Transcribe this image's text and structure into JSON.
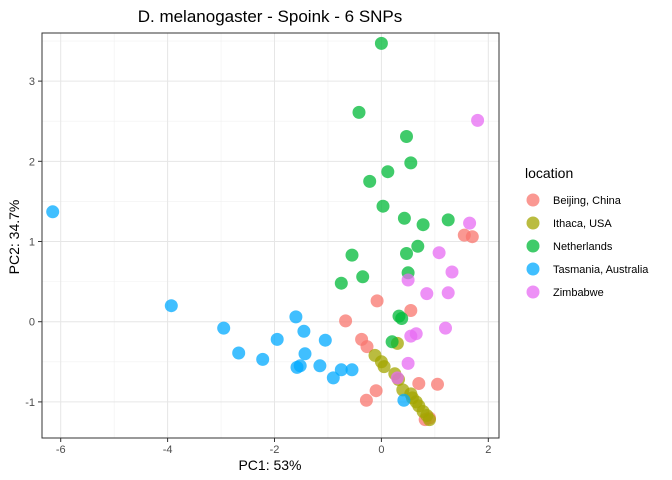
{
  "chart_data": {
    "type": "scatter",
    "title": "D. melanogaster - Spoink - 6 SNPs",
    "xlabel": "PC1: 53%",
    "ylabel": "PC2: 34.7%",
    "xlim": [
      -6.35,
      2.2
    ],
    "ylim": [
      -1.45,
      3.6
    ],
    "x_ticks": [
      -6,
      -4,
      -2,
      0,
      2
    ],
    "y_ticks": [
      -1,
      0,
      1,
      2,
      3
    ],
    "grid": true,
    "legend": {
      "title": "location",
      "position": "right"
    },
    "series": [
      {
        "name": "Beijing, China",
        "color": "#F8766D",
        "points": [
          [
            1.55,
            1.08
          ],
          [
            1.7,
            1.06
          ],
          [
            -0.08,
            0.26
          ],
          [
            0.55,
            0.14
          ],
          [
            -0.67,
            0.01
          ],
          [
            -0.37,
            -0.22
          ],
          [
            -0.27,
            -0.31
          ],
          [
            0.7,
            -0.77
          ],
          [
            1.05,
            -0.78
          ],
          [
            -0.1,
            -0.86
          ],
          [
            -0.28,
            -0.98
          ],
          [
            0.82,
            -1.22
          ],
          [
            0.9,
            -1.2
          ]
        ]
      },
      {
        "name": "Ithaca, USA",
        "color": "#A3A500",
        "points": [
          [
            0.3,
            -0.27
          ],
          [
            -0.12,
            -0.42
          ],
          [
            0.0,
            -0.5
          ],
          [
            0.05,
            -0.56
          ],
          [
            0.25,
            -0.65
          ],
          [
            0.32,
            -0.72
          ],
          [
            0.4,
            -0.85
          ],
          [
            0.55,
            -0.9
          ],
          [
            0.58,
            -0.95
          ],
          [
            0.65,
            -1.0
          ],
          [
            0.7,
            -1.05
          ],
          [
            0.78,
            -1.12
          ],
          [
            0.85,
            -1.17
          ],
          [
            0.9,
            -1.22
          ]
        ]
      },
      {
        "name": "Netherlands",
        "color": "#00BA38",
        "points": [
          [
            0.0,
            3.47
          ],
          [
            -0.42,
            2.61
          ],
          [
            0.47,
            2.31
          ],
          [
            0.55,
            1.98
          ],
          [
            0.12,
            1.87
          ],
          [
            -0.22,
            1.75
          ],
          [
            0.03,
            1.44
          ],
          [
            0.43,
            1.29
          ],
          [
            0.78,
            1.21
          ],
          [
            1.25,
            1.27
          ],
          [
            0.68,
            0.94
          ],
          [
            0.47,
            0.85
          ],
          [
            -0.55,
            0.83
          ],
          [
            0.5,
            0.61
          ],
          [
            -0.35,
            0.56
          ],
          [
            -0.75,
            0.48
          ],
          [
            0.33,
            0.07
          ],
          [
            0.38,
            0.04
          ],
          [
            0.2,
            -0.25
          ]
        ]
      },
      {
        "name": "Tasmania, Australia",
        "color": "#00A9FF",
        "points": [
          [
            -6.15,
            1.37
          ],
          [
            -3.93,
            0.2
          ],
          [
            -1.6,
            0.06
          ],
          [
            -2.95,
            -0.08
          ],
          [
            -1.45,
            -0.12
          ],
          [
            -1.95,
            -0.22
          ],
          [
            -1.05,
            -0.23
          ],
          [
            -2.67,
            -0.39
          ],
          [
            -1.43,
            -0.4
          ],
          [
            -2.22,
            -0.47
          ],
          [
            -1.15,
            -0.55
          ],
          [
            -1.52,
            -0.55
          ],
          [
            -1.58,
            -0.57
          ],
          [
            -0.55,
            -0.6
          ],
          [
            -0.75,
            -0.6
          ],
          [
            -0.9,
            -0.7
          ],
          [
            0.42,
            -0.98
          ]
        ]
      },
      {
        "name": "Zimbabwe",
        "color": "#E76BF3",
        "points": [
          [
            1.8,
            2.51
          ],
          [
            1.65,
            1.23
          ],
          [
            1.08,
            0.86
          ],
          [
            0.5,
            0.52
          ],
          [
            1.32,
            0.62
          ],
          [
            0.85,
            0.35
          ],
          [
            1.25,
            0.36
          ],
          [
            0.65,
            -0.15
          ],
          [
            0.55,
            -0.18
          ],
          [
            1.2,
            -0.08
          ],
          [
            0.5,
            -0.52
          ],
          [
            0.3,
            -0.7
          ]
        ]
      }
    ]
  }
}
